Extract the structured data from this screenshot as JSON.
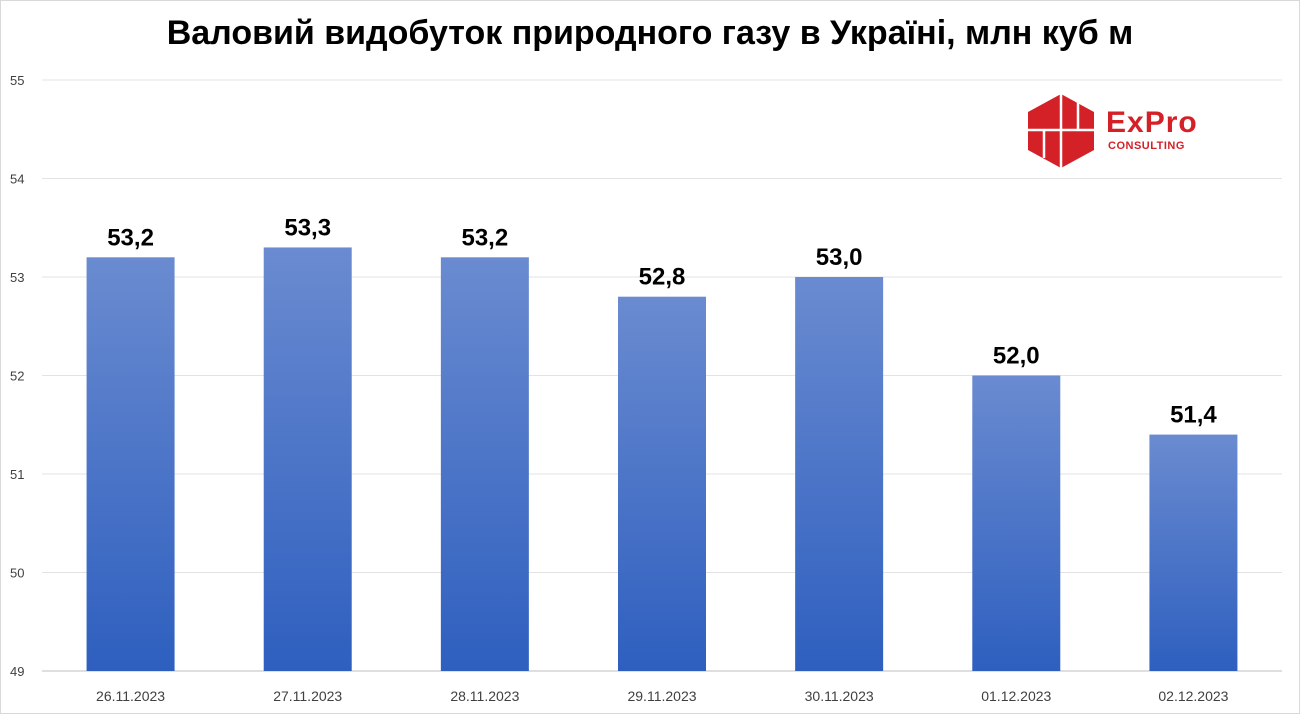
{
  "chart_data": {
    "type": "bar",
    "title": "Валовий видобуток природного газу в Україні, млн куб м",
    "categories": [
      "26.11.2023",
      "27.11.2023",
      "28.11.2023",
      "29.11.2023",
      "30.11.2023",
      "01.12.2023",
      "02.12.2023"
    ],
    "values": [
      53.2,
      53.3,
      53.2,
      52.8,
      53.0,
      52.0,
      51.4
    ],
    "value_labels": [
      "53,2",
      "53,3",
      "53,2",
      "52,8",
      "53,0",
      "52,0",
      "51,4"
    ],
    "ylim": [
      49,
      55
    ],
    "yticks": [
      49,
      50,
      51,
      52,
      53,
      54,
      55
    ],
    "grid": true,
    "legend": "none",
    "bar_color_top": "#6a8bd0",
    "bar_color_bottom": "#2e5fbf"
  },
  "logo": {
    "word": "ExPro",
    "sub": "CONSULTING",
    "color": "#d42027"
  }
}
